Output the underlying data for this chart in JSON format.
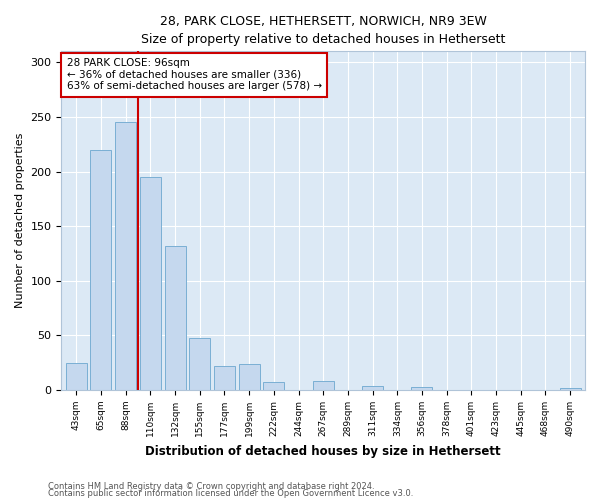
{
  "title1": "28, PARK CLOSE, HETHERSETT, NORWICH, NR9 3EW",
  "title2": "Size of property relative to detached houses in Hethersett",
  "xlabel": "Distribution of detached houses by size in Hethersett",
  "ylabel": "Number of detached properties",
  "categories": [
    "43sqm",
    "65sqm",
    "88sqm",
    "110sqm",
    "132sqm",
    "155sqm",
    "177sqm",
    "199sqm",
    "222sqm",
    "244sqm",
    "267sqm",
    "289sqm",
    "311sqm",
    "334sqm",
    "356sqm",
    "378sqm",
    "401sqm",
    "423sqm",
    "445sqm",
    "468sqm",
    "490sqm"
  ],
  "values": [
    25,
    220,
    245,
    195,
    132,
    48,
    22,
    24,
    7,
    0,
    8,
    0,
    4,
    0,
    3,
    0,
    0,
    0,
    0,
    0,
    2
  ],
  "bar_color": "#c5d8ee",
  "bar_edge_color": "#7aafd4",
  "vline_x": 2.5,
  "vline_color": "#cc0000",
  "annotation_text": "28 PARK CLOSE: 96sqm\n← 36% of detached houses are smaller (336)\n63% of semi-detached houses are larger (578) →",
  "annotation_box_facecolor": "#ffffff",
  "annotation_box_edgecolor": "#cc0000",
  "ylim": [
    0,
    310
  ],
  "yticks": [
    0,
    50,
    100,
    150,
    200,
    250,
    300
  ],
  "footer1": "Contains HM Land Registry data © Crown copyright and database right 2024.",
  "footer2": "Contains public sector information licensed under the Open Government Licence v3.0.",
  "fig_facecolor": "#ffffff",
  "plot_facecolor": "#dce9f5",
  "grid_color": "#ffffff",
  "spine_color": "#b0c4d8"
}
